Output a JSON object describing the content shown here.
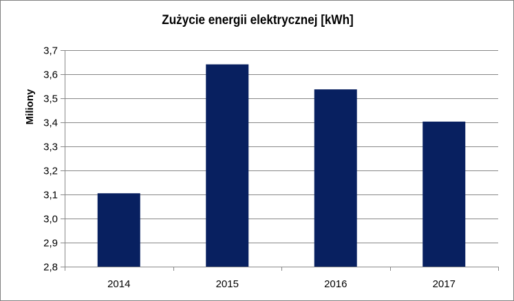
{
  "chart_data": {
    "type": "bar",
    "title": "Zużycie energii elektrycznej [kWh]",
    "ylabel": "Miliony",
    "xlabel": "",
    "categories": [
      "2014",
      "2015",
      "2016",
      "2017"
    ],
    "values": [
      3.105,
      3.641,
      3.537,
      3.403
    ],
    "ylim": [
      2.8,
      3.7
    ],
    "y_ticks": [
      2.8,
      2.9,
      3.0,
      3.1,
      3.2,
      3.3,
      3.4,
      3.5,
      3.6,
      3.7
    ],
    "y_tick_labels": [
      "2,8",
      "2,9",
      "3,0",
      "3,1",
      "3,2",
      "3,3",
      "3,4",
      "3,5",
      "3,6",
      "3,7"
    ],
    "grid": true,
    "legend": "none",
    "colors": {
      "bar": "#082060",
      "grid": "#868686",
      "axis": "#868686"
    }
  }
}
